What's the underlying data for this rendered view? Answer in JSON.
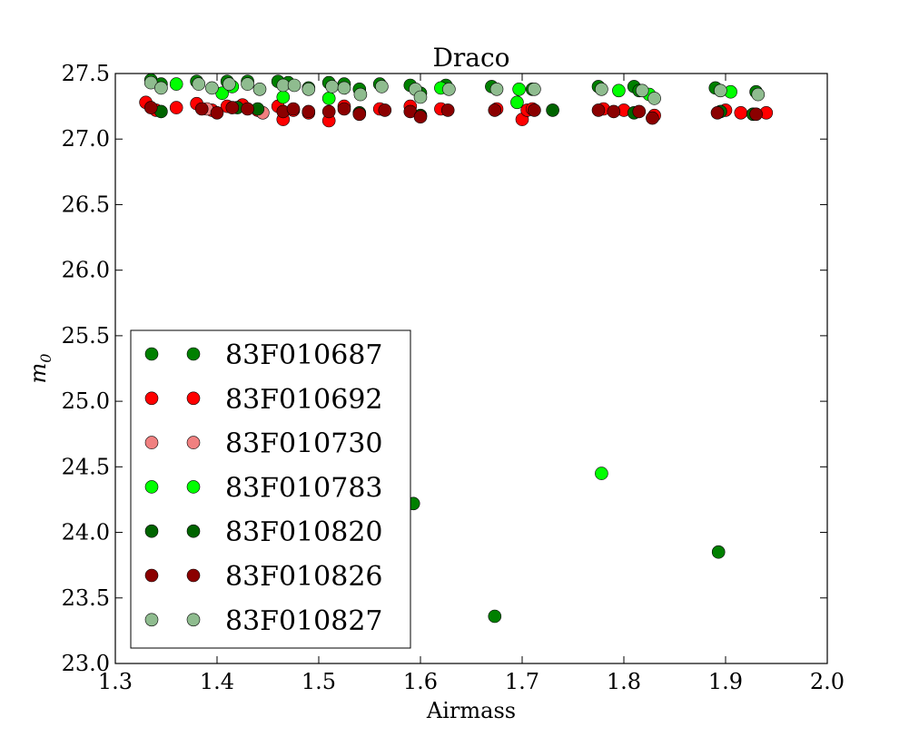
{
  "chart_data": {
    "type": "scatter",
    "title": "Draco",
    "xlabel": "Airmass",
    "ylabel": "m",
    "ylabel_subscript": "0",
    "xlim": [
      1.3,
      2.0
    ],
    "ylim": [
      23.0,
      27.5
    ],
    "x_ticks": [
      "1.3",
      "1.4",
      "1.5",
      "1.6",
      "1.7",
      "1.8",
      "1.9",
      "2.0"
    ],
    "y_ticks": [
      "23.0",
      "23.5",
      "24.0",
      "24.5",
      "25.0",
      "25.5",
      "26.0",
      "26.5",
      "27.0",
      "27.5"
    ],
    "grid": false,
    "legend_position": "lower-left",
    "series": [
      {
        "name": "83F010687",
        "color": "#008000",
        "points": [
          [
            1.335,
            27.45
          ],
          [
            1.345,
            27.42
          ],
          [
            1.38,
            27.44
          ],
          [
            1.41,
            27.44
          ],
          [
            1.43,
            27.44
          ],
          [
            1.46,
            27.44
          ],
          [
            1.47,
            27.43
          ],
          [
            1.49,
            27.39
          ],
          [
            1.51,
            27.43
          ],
          [
            1.525,
            27.42
          ],
          [
            1.54,
            27.38
          ],
          [
            1.56,
            27.42
          ],
          [
            1.59,
            27.41
          ],
          [
            1.6,
            27.35
          ],
          [
            1.625,
            27.41
          ],
          [
            1.67,
            27.4
          ],
          [
            1.71,
            27.38
          ],
          [
            1.775,
            27.4
          ],
          [
            1.81,
            27.4
          ],
          [
            1.815,
            27.37
          ],
          [
            1.89,
            27.39
          ],
          [
            1.93,
            27.36
          ],
          [
            1.593,
            24.22
          ],
          [
            1.673,
            23.36
          ],
          [
            1.893,
            23.85
          ]
        ]
      },
      {
        "name": "83F010692",
        "color": "#ff0000",
        "points": [
          [
            1.33,
            27.28
          ],
          [
            1.34,
            27.22
          ],
          [
            1.36,
            27.24
          ],
          [
            1.38,
            27.27
          ],
          [
            1.395,
            27.22
          ],
          [
            1.41,
            27.25
          ],
          [
            1.425,
            27.26
          ],
          [
            1.44,
            27.22
          ],
          [
            1.46,
            27.25
          ],
          [
            1.465,
            27.15
          ],
          [
            1.475,
            27.22
          ],
          [
            1.49,
            27.2
          ],
          [
            1.51,
            27.14
          ],
          [
            1.525,
            27.25
          ],
          [
            1.56,
            27.23
          ],
          [
            1.59,
            27.25
          ],
          [
            1.62,
            27.23
          ],
          [
            1.675,
            27.23
          ],
          [
            1.7,
            27.15
          ],
          [
            1.705,
            27.22
          ],
          [
            1.71,
            27.23
          ],
          [
            1.78,
            27.23
          ],
          [
            1.8,
            27.22
          ],
          [
            1.83,
            27.18
          ],
          [
            1.9,
            27.22
          ],
          [
            1.915,
            27.2
          ],
          [
            1.94,
            27.2
          ]
        ]
      },
      {
        "name": "83F010730",
        "color": "#f08080",
        "points": [
          [
            1.39,
            27.23
          ],
          [
            1.445,
            27.2
          ]
        ]
      },
      {
        "name": "83F010783",
        "color": "#00ff00",
        "points": [
          [
            1.36,
            27.42
          ],
          [
            1.405,
            27.35
          ],
          [
            1.415,
            27.4
          ],
          [
            1.465,
            27.32
          ],
          [
            1.51,
            27.31
          ],
          [
            1.62,
            27.39
          ],
          [
            1.695,
            27.28
          ],
          [
            1.697,
            27.38
          ],
          [
            1.795,
            27.37
          ],
          [
            1.825,
            27.34
          ],
          [
            1.905,
            27.36
          ],
          [
            1.778,
            24.45
          ]
        ]
      },
      {
        "name": "83F010820",
        "color": "#006400",
        "points": [
          [
            1.345,
            27.21
          ],
          [
            1.42,
            27.24
          ],
          [
            1.44,
            27.23
          ],
          [
            1.54,
            27.2
          ],
          [
            1.6,
            27.18
          ],
          [
            1.73,
            27.22
          ],
          [
            1.81,
            27.2
          ],
          [
            1.895,
            27.21
          ],
          [
            1.927,
            27.19
          ]
        ]
      },
      {
        "name": "83F010826",
        "color": "#8b0000",
        "points": [
          [
            1.335,
            27.24
          ],
          [
            1.385,
            27.23
          ],
          [
            1.4,
            27.2
          ],
          [
            1.415,
            27.24
          ],
          [
            1.43,
            27.23
          ],
          [
            1.465,
            27.21
          ],
          [
            1.475,
            27.23
          ],
          [
            1.49,
            27.21
          ],
          [
            1.51,
            27.21
          ],
          [
            1.525,
            27.23
          ],
          [
            1.54,
            27.19
          ],
          [
            1.565,
            27.22
          ],
          [
            1.59,
            27.21
          ],
          [
            1.6,
            27.17
          ],
          [
            1.627,
            27.22
          ],
          [
            1.673,
            27.22
          ],
          [
            1.712,
            27.22
          ],
          [
            1.775,
            27.22
          ],
          [
            1.79,
            27.21
          ],
          [
            1.815,
            27.21
          ],
          [
            1.828,
            27.16
          ],
          [
            1.892,
            27.2
          ],
          [
            1.93,
            27.19
          ]
        ]
      },
      {
        "name": "83F010827",
        "color": "#8fbc8f",
        "points": [
          [
            1.335,
            27.43
          ],
          [
            1.345,
            27.39
          ],
          [
            1.382,
            27.42
          ],
          [
            1.395,
            27.39
          ],
          [
            1.412,
            27.42
          ],
          [
            1.43,
            27.42
          ],
          [
            1.442,
            27.38
          ],
          [
            1.465,
            27.41
          ],
          [
            1.476,
            27.41
          ],
          [
            1.49,
            27.38
          ],
          [
            1.513,
            27.4
          ],
          [
            1.525,
            27.39
          ],
          [
            1.541,
            27.34
          ],
          [
            1.562,
            27.4
          ],
          [
            1.595,
            27.38
          ],
          [
            1.6,
            27.32
          ],
          [
            1.628,
            27.38
          ],
          [
            1.675,
            27.38
          ],
          [
            1.712,
            27.38
          ],
          [
            1.778,
            27.38
          ],
          [
            1.818,
            27.37
          ],
          [
            1.83,
            27.31
          ],
          [
            1.895,
            27.37
          ],
          [
            1.932,
            27.34
          ]
        ]
      }
    ]
  }
}
